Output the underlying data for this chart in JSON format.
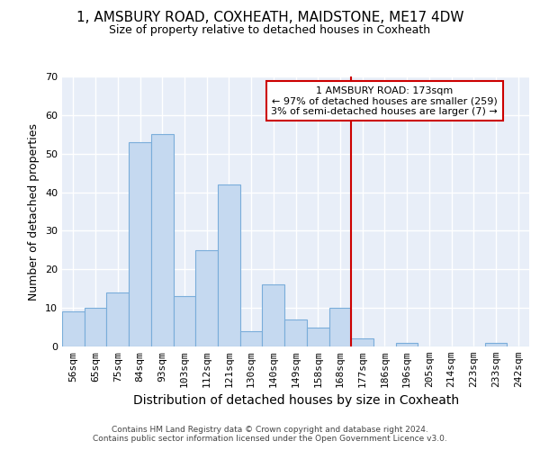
{
  "title": "1, AMSBURY ROAD, COXHEATH, MAIDSTONE, ME17 4DW",
  "subtitle": "Size of property relative to detached houses in Coxheath",
  "xlabel": "Distribution of detached houses by size in Coxheath",
  "ylabel": "Number of detached properties",
  "bar_labels": [
    "56sqm",
    "65sqm",
    "75sqm",
    "84sqm",
    "93sqm",
    "103sqm",
    "112sqm",
    "121sqm",
    "130sqm",
    "140sqm",
    "149sqm",
    "158sqm",
    "168sqm",
    "177sqm",
    "186sqm",
    "196sqm",
    "205sqm",
    "214sqm",
    "223sqm",
    "233sqm",
    "242sqm"
  ],
  "bar_values": [
    9,
    10,
    14,
    53,
    55,
    13,
    25,
    42,
    4,
    16,
    7,
    5,
    10,
    2,
    0,
    1,
    0,
    0,
    0,
    1,
    0
  ],
  "bar_color": "#c5d9f0",
  "bar_edge_color": "#7aadda",
  "annotation_line1": "1 AMSBURY ROAD: 173sqm",
  "annotation_line2": "← 97% of detached houses are smaller (259)",
  "annotation_line3": "3% of semi-detached houses are larger (7) →",
  "annotation_box_edge": "#cc0000",
  "vline_color": "#cc0000",
  "vline_x": 12.5,
  "ylim": [
    0,
    70
  ],
  "yticks": [
    0,
    10,
    20,
    30,
    40,
    50,
    60,
    70
  ],
  "footer_text": "Contains HM Land Registry data © Crown copyright and database right 2024.\nContains public sector information licensed under the Open Government Licence v3.0.",
  "fig_bg_color": "#ffffff",
  "plot_bg_color": "#e8eef8",
  "title_fontsize": 11,
  "subtitle_fontsize": 9,
  "ylabel_fontsize": 9,
  "xlabel_fontsize": 10,
  "tick_fontsize": 8,
  "annot_fontsize": 8,
  "footer_fontsize": 6.5
}
